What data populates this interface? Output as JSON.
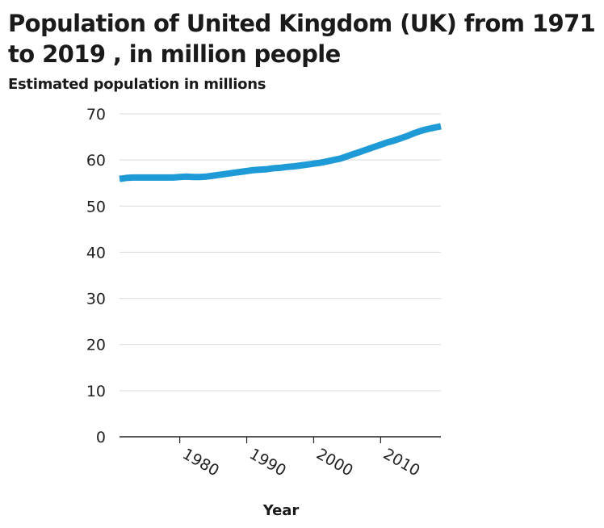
{
  "chart_data": {
    "type": "line",
    "title": "Population of United Kingdom (UK) from 1971 to 2019 , in million people",
    "xlabel": "Year",
    "ylabel": "Estimated population in millions",
    "xlim": [
      1971,
      2019
    ],
    "ylim": [
      0,
      70
    ],
    "xticks": [
      1980,
      1990,
      2000,
      2010
    ],
    "yticks": [
      0,
      10,
      20,
      30,
      40,
      50,
      60,
      70
    ],
    "grid": "horizontal",
    "legend": "none",
    "color": "#1e9bd7",
    "series": [
      {
        "x": [
          1971,
          1972,
          1973,
          1974,
          1975,
          1976,
          1977,
          1978,
          1979,
          1980,
          1981,
          1982,
          1983,
          1984,
          1985,
          1986,
          1987,
          1988,
          1989,
          1990,
          1991,
          1992,
          1993,
          1994,
          1995,
          1996,
          1997,
          1998,
          1999,
          2000,
          2001,
          2002,
          2003,
          2004,
          2005,
          2006,
          2007,
          2008,
          2009,
          2010,
          2011,
          2012,
          2013,
          2014,
          2015,
          2016,
          2017,
          2018,
          2019
        ],
        "values": [
          55.9,
          56.1,
          56.2,
          56.2,
          56.2,
          56.2,
          56.2,
          56.2,
          56.2,
          56.3,
          56.4,
          56.3,
          56.3,
          56.4,
          56.6,
          56.8,
          57.0,
          57.2,
          57.4,
          57.6,
          57.8,
          57.9,
          58.0,
          58.2,
          58.3,
          58.5,
          58.6,
          58.8,
          59.0,
          59.2,
          59.4,
          59.7,
          60.0,
          60.3,
          60.8,
          61.3,
          61.8,
          62.3,
          62.8,
          63.3,
          63.8,
          64.2,
          64.7,
          65.2,
          65.8,
          66.3,
          66.7,
          67.0,
          67.3
        ]
      }
    ]
  }
}
